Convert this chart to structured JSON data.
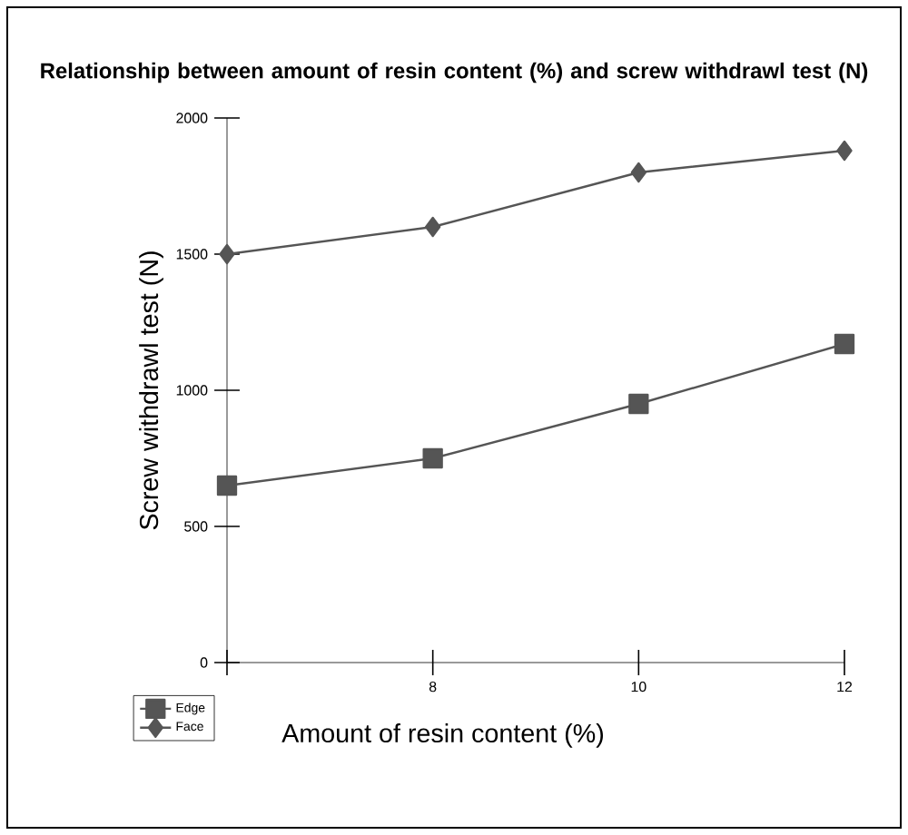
{
  "chart_data": {
    "type": "line",
    "title": "Relationship between amount of resin content (%) and screw withdrawl test (N)",
    "xlabel": "Amount of resin content (%)",
    "ylabel": "Screw withdrawl test (N)",
    "x": [
      6,
      8,
      10,
      12
    ],
    "series": [
      {
        "name": "Edge",
        "color": "#555555",
        "marker": "square",
        "values": [
          650,
          750,
          950,
          1170
        ]
      },
      {
        "name": "Face",
        "color": "#555555",
        "marker": "diamond",
        "values": [
          1500,
          1600,
          1800,
          1880
        ]
      }
    ],
    "xlim": [
      6,
      12
    ],
    "xticks": [
      {
        "value": 6,
        "label": null
      },
      8,
      10,
      12
    ],
    "ylim": [
      0,
      2000
    ],
    "yticks": [
      0,
      500,
      1000,
      1500,
      2000
    ],
    "legend": "bottom left",
    "grid": false
  }
}
